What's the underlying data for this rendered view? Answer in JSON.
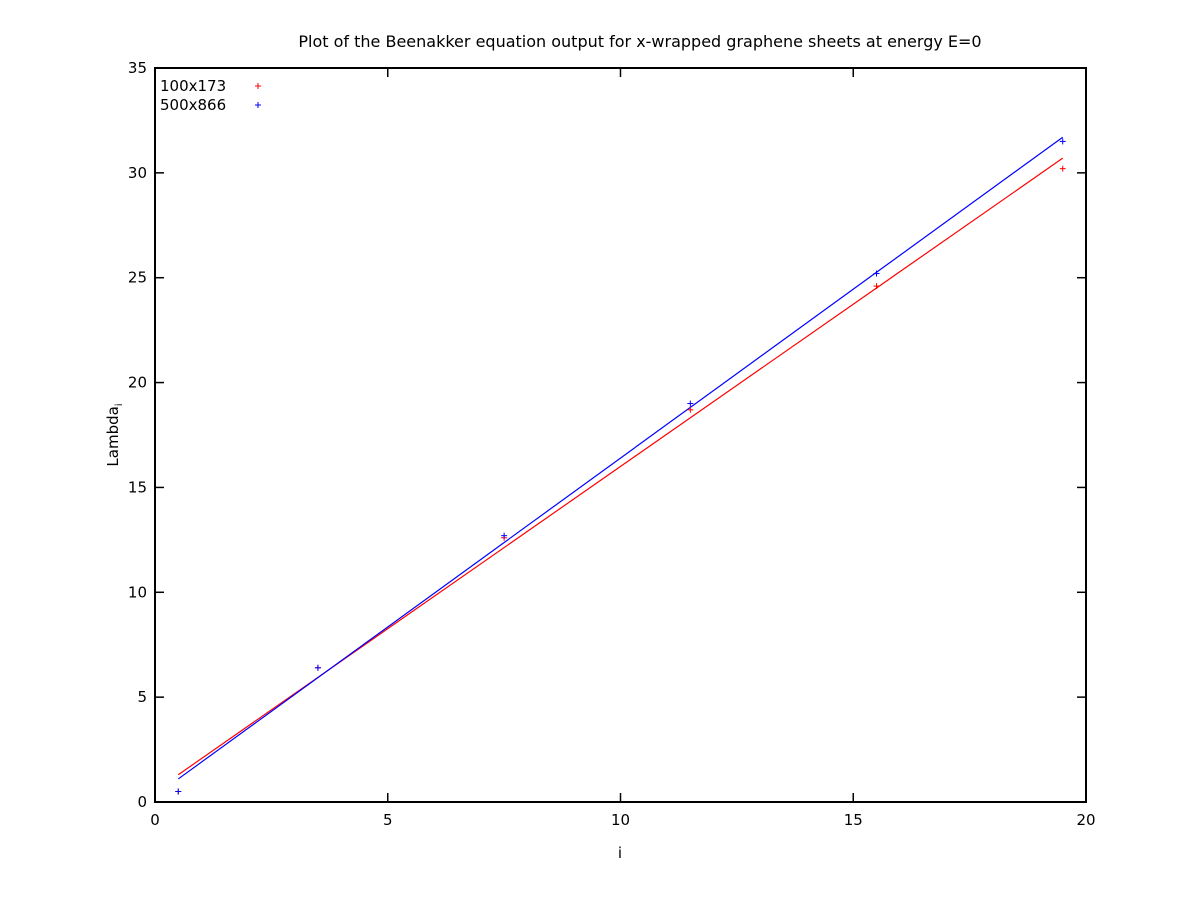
{
  "chart_data": {
    "type": "scatter",
    "title": "Plot of the Beenakker equation output for x-wrapped graphene sheets at energy E=0",
    "xlabel": "i",
    "ylabel": "Lambda",
    "ylabel_subscript": "i",
    "xlim": [
      0,
      20
    ],
    "ylim": [
      0,
      35
    ],
    "xticks": [
      0,
      5,
      10,
      15,
      20
    ],
    "yticks": [
      0,
      5,
      10,
      15,
      20,
      25,
      30,
      35
    ],
    "grid": false,
    "legend_position": "top-left",
    "series": [
      {
        "name": "100x173",
        "color": "#ff0000",
        "marker": "+",
        "points": [
          {
            "x": 0.5,
            "y": 0.5
          },
          {
            "x": 3.5,
            "y": 6.4
          },
          {
            "x": 7.5,
            "y": 12.6
          },
          {
            "x": 11.5,
            "y": 18.7
          },
          {
            "x": 15.5,
            "y": 24.6
          },
          {
            "x": 19.5,
            "y": 30.2
          }
        ],
        "fit": {
          "x": [
            0.5,
            19.5
          ],
          "y": [
            1.3,
            30.7
          ]
        }
      },
      {
        "name": "500x866",
        "color": "#0000ff",
        "marker": "+",
        "points": [
          {
            "x": 0.5,
            "y": 0.5
          },
          {
            "x": 3.5,
            "y": 6.4
          },
          {
            "x": 7.5,
            "y": 12.7
          },
          {
            "x": 11.5,
            "y": 19.0
          },
          {
            "x": 15.5,
            "y": 25.2
          },
          {
            "x": 19.5,
            "y": 31.5
          }
        ],
        "fit": {
          "x": [
            0.5,
            19.5
          ],
          "y": [
            1.1,
            31.7
          ]
        }
      }
    ]
  }
}
